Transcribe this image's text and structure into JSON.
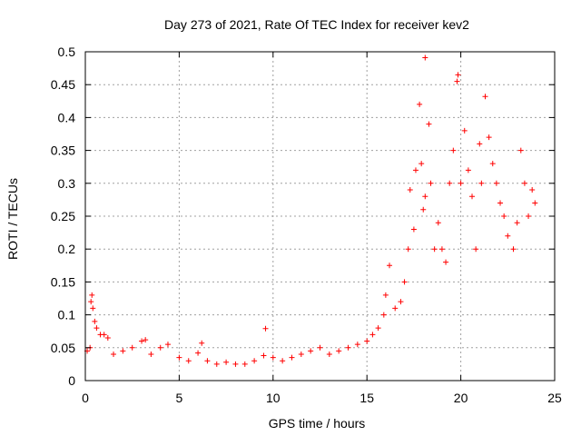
{
  "chart_data": {
    "type": "scatter",
    "title": "Day 273 of 2021, Rate Of TEC Index for receiver kev2",
    "xlabel": "GPS time / hours",
    "ylabel": "ROTI / TECUs",
    "xlim": [
      0,
      25
    ],
    "ylim": [
      0,
      0.5
    ],
    "xticks": [
      0,
      5,
      10,
      15,
      20,
      25
    ],
    "xtick_labels": [
      "0",
      "5",
      "10",
      "15",
      "20",
      "25"
    ],
    "yticks": [
      0,
      0.05,
      0.1,
      0.15,
      0.2,
      0.25,
      0.3,
      0.35,
      0.4,
      0.45,
      0.5
    ],
    "ytick_labels": [
      "0",
      "0.05",
      "0.1",
      "0.15",
      "0.2",
      "0.25",
      "0.3",
      "0.35",
      "0.4",
      "0.45",
      "0.5"
    ],
    "grid": true,
    "marker": "+",
    "color": "#ff0000",
    "series": [
      {
        "name": "ROTI",
        "points": [
          [
            0.1,
            0.045
          ],
          [
            0.25,
            0.05
          ],
          [
            0.3,
            0.12
          ],
          [
            0.35,
            0.13
          ],
          [
            0.4,
            0.11
          ],
          [
            0.5,
            0.09
          ],
          [
            0.6,
            0.08
          ],
          [
            0.8,
            0.07
          ],
          [
            1.0,
            0.07
          ],
          [
            1.2,
            0.065
          ],
          [
            1.5,
            0.04
          ],
          [
            2.0,
            0.045
          ],
          [
            2.5,
            0.05
          ],
          [
            3.0,
            0.06
          ],
          [
            3.2,
            0.062
          ],
          [
            3.5,
            0.04
          ],
          [
            4.0,
            0.05
          ],
          [
            4.4,
            0.055
          ],
          [
            5.0,
            0.035
          ],
          [
            5.5,
            0.03
          ],
          [
            6.0,
            0.042
          ],
          [
            6.2,
            0.057
          ],
          [
            6.5,
            0.03
          ],
          [
            7.0,
            0.025
          ],
          [
            7.5,
            0.028
          ],
          [
            8.0,
            0.025
          ],
          [
            8.5,
            0.025
          ],
          [
            9.0,
            0.03
          ],
          [
            9.5,
            0.038
          ],
          [
            9.6,
            0.079
          ],
          [
            10.0,
            0.035
          ],
          [
            10.5,
            0.03
          ],
          [
            11.0,
            0.035
          ],
          [
            11.5,
            0.04
          ],
          [
            12.0,
            0.045
          ],
          [
            12.5,
            0.05
          ],
          [
            13.0,
            0.04
          ],
          [
            13.5,
            0.045
          ],
          [
            14.0,
            0.05
          ],
          [
            14.5,
            0.055
          ],
          [
            15.0,
            0.06
          ],
          [
            15.3,
            0.07
          ],
          [
            15.6,
            0.08
          ],
          [
            15.9,
            0.1
          ],
          [
            16.0,
            0.13
          ],
          [
            16.2,
            0.175
          ],
          [
            16.5,
            0.11
          ],
          [
            16.8,
            0.12
          ],
          [
            17.0,
            0.15
          ],
          [
            17.2,
            0.2
          ],
          [
            17.3,
            0.29
          ],
          [
            17.5,
            0.23
          ],
          [
            17.6,
            0.32
          ],
          [
            17.8,
            0.42
          ],
          [
            17.9,
            0.33
          ],
          [
            18.0,
            0.26
          ],
          [
            18.1,
            0.28
          ],
          [
            18.1,
            0.491
          ],
          [
            18.3,
            0.39
          ],
          [
            18.4,
            0.3
          ],
          [
            18.6,
            0.2
          ],
          [
            18.8,
            0.24
          ],
          [
            19.0,
            0.2
          ],
          [
            19.2,
            0.18
          ],
          [
            19.4,
            0.3
          ],
          [
            19.6,
            0.35
          ],
          [
            19.8,
            0.455
          ],
          [
            19.85,
            0.465
          ],
          [
            20.0,
            0.3
          ],
          [
            20.2,
            0.38
          ],
          [
            20.4,
            0.32
          ],
          [
            20.6,
            0.28
          ],
          [
            20.8,
            0.2
          ],
          [
            21.0,
            0.36
          ],
          [
            21.1,
            0.3
          ],
          [
            21.3,
            0.432
          ],
          [
            21.5,
            0.37
          ],
          [
            21.7,
            0.33
          ],
          [
            21.9,
            0.3
          ],
          [
            22.1,
            0.27
          ],
          [
            22.3,
            0.25
          ],
          [
            22.5,
            0.22
          ],
          [
            22.8,
            0.2
          ],
          [
            23.0,
            0.24
          ],
          [
            23.2,
            0.35
          ],
          [
            23.4,
            0.3
          ],
          [
            23.6,
            0.25
          ],
          [
            23.8,
            0.29
          ],
          [
            23.95,
            0.27
          ]
        ]
      }
    ]
  }
}
